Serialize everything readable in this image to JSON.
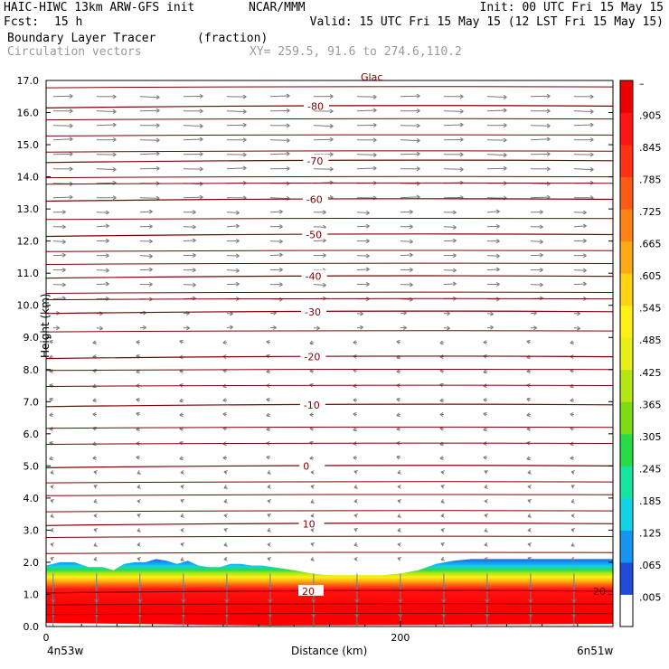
{
  "header": {
    "model": "HAIC-HIWC 13km ARW-GFS init",
    "org": "NCAR/MMM",
    "init": "Init: 00 UTC Fri 15 May 15",
    "fcst_label": "Fcst:",
    "fcst_value": "15 h",
    "valid": "Valid: 15 UTC Fri 15 May 15 (12 LST Fri 15 May 15)",
    "field": "Boundary Layer Tracer",
    "units": "(fraction)",
    "vectors": "Circulation vectors",
    "xy": "XY= 259.5, 91.6 to 274.6,110.2",
    "clipped_top_label": "Glac"
  },
  "chart_data": {
    "type": "heatmap",
    "title": "Boundary Layer Tracer",
    "units": "(fraction)",
    "xlabel": "Distance (km)",
    "ylabel": "Height (km)",
    "xlim": [
      0,
      320
    ],
    "ylim": [
      0,
      17
    ],
    "x_ticks": [
      0,
      200
    ],
    "y_ticks": [
      "0.0",
      "1.0",
      "2.0",
      "3.0",
      "4.0",
      "5.0",
      "6.0",
      "7.0",
      "8.0",
      "9.0",
      "10.0",
      "11.0",
      "12.0",
      "13.0",
      "14.0",
      "15.0",
      "16.0",
      "17.0"
    ],
    "x_endpoints": {
      "left": "4n53w",
      "right": "6n51w"
    },
    "colorbar_labels": [
      ".005",
      ".065",
      ".125",
      ".185",
      ".245",
      ".305",
      ".365",
      ".425",
      ".485",
      ".545",
      ".605",
      ".665",
      ".725",
      ".785",
      ".845",
      ".905",
      "–"
    ],
    "colorbar_colors": [
      "#ffffff",
      "#1f4bdb",
      "#1496f0",
      "#14d2e6",
      "#14e6a0",
      "#28dc46",
      "#7ddc14",
      "#b4e614",
      "#e6f014",
      "#fff014",
      "#ffd214",
      "#ffaa14",
      "#ff8214",
      "#ff5a14",
      "#ff3214",
      "#ff1414",
      "#ee0000"
    ],
    "tracer_top_km": [
      [
        0,
        1.9
      ],
      [
        8,
        2.0
      ],
      [
        16,
        2.0
      ],
      [
        24,
        1.85
      ],
      [
        32,
        1.85
      ],
      [
        38,
        1.75
      ],
      [
        44,
        1.95
      ],
      [
        50,
        2.0
      ],
      [
        56,
        2.0
      ],
      [
        62,
        2.1
      ],
      [
        68,
        2.05
      ],
      [
        74,
        1.95
      ],
      [
        80,
        2.05
      ],
      [
        86,
        1.9
      ],
      [
        92,
        1.85
      ],
      [
        98,
        1.85
      ],
      [
        104,
        1.95
      ],
      [
        110,
        1.95
      ],
      [
        116,
        1.9
      ],
      [
        122,
        1.9
      ],
      [
        128,
        1.85
      ],
      [
        134,
        1.8
      ],
      [
        140,
        1.75
      ],
      [
        150,
        1.65
      ],
      [
        160,
        1.6
      ],
      [
        170,
        1.6
      ],
      [
        180,
        1.6
      ],
      [
        190,
        1.6
      ],
      [
        200,
        1.65
      ],
      [
        210,
        1.75
      ],
      [
        220,
        1.95
      ],
      [
        230,
        2.05
      ],
      [
        240,
        2.1
      ],
      [
        250,
        2.1
      ],
      [
        260,
        2.1
      ],
      [
        270,
        2.1
      ],
      [
        280,
        2.1
      ],
      [
        290,
        2.1
      ],
      [
        300,
        2.1
      ],
      [
        310,
        2.1
      ],
      [
        320,
        2.1
      ]
    ],
    "temperature_contours": [
      {
        "label": "-80",
        "height_km": 16.2
      },
      {
        "label": "-70",
        "height_km": 14.5
      },
      {
        "label": "-60",
        "height_km": 13.3
      },
      {
        "label": "-50",
        "height_km": 12.2
      },
      {
        "label": "-40",
        "height_km": 10.9
      },
      {
        "label": "-30",
        "height_km": 9.8
      },
      {
        "label": "-20",
        "height_km": 8.4
      },
      {
        "label": "-10",
        "height_km": 6.9
      },
      {
        "label": "0",
        "height_km": 5.0
      },
      {
        "label": "10",
        "height_km": 3.2
      },
      {
        "label": "20",
        "height_km": 1.1
      }
    ],
    "grid": false,
    "legend": "right colorbar"
  }
}
